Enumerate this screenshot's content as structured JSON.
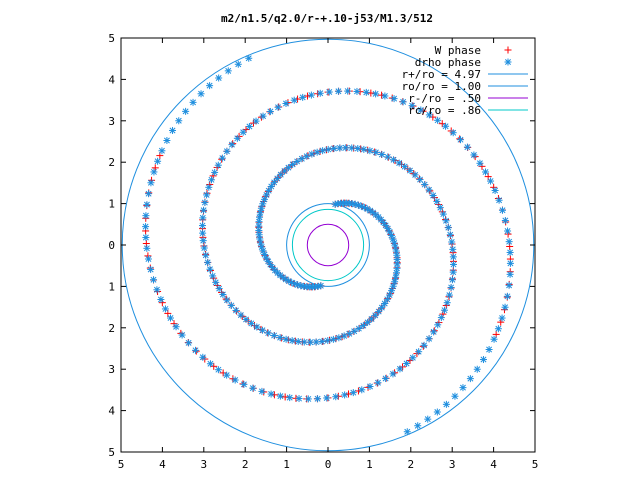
{
  "chart_data": {
    "type": "scatter",
    "title": "m2/n1.5/q2.0/r-+.10-j53/M1.3/512",
    "xlim": [
      -5,
      5
    ],
    "ylim": [
      -5,
      5
    ],
    "x_ticks": [
      -5,
      -4,
      -3,
      -2,
      -1,
      0,
      1,
      2,
      3,
      4,
      5
    ],
    "y_ticks": [
      -5,
      -4,
      -3,
      -2,
      -1,
      0,
      1,
      2,
      3,
      4,
      5
    ],
    "x_tick_labels": [
      "5",
      "4",
      "3",
      "2",
      "1",
      "0",
      "1",
      "2",
      "3",
      "4",
      "5"
    ],
    "y_tick_labels": [
      "5",
      "4",
      "3",
      "2",
      "1",
      "0",
      "1",
      "2",
      "3",
      "4",
      "5"
    ],
    "grid": false,
    "legend_position": "top-right",
    "legend": [
      {
        "label": "W phase",
        "kind": "point",
        "marker": "plus",
        "color": "#ff0000"
      },
      {
        "label": "drho phase",
        "kind": "point",
        "marker": "star",
        "color": "#1f8fdf"
      },
      {
        "label": "r+/ro = 4.97",
        "kind": "line",
        "color": "#1f8fdf"
      },
      {
        "label": "ro/ro = 1.00",
        "kind": "line",
        "color": "#1f8fdf"
      },
      {
        "label": "r-/ro =  .50",
        "kind": "line",
        "color": "#9400d3"
      },
      {
        "label": "rc/ro =  .86",
        "kind": "line",
        "color": "#00c8c8"
      }
    ],
    "circles": [
      {
        "name": "r+/ro",
        "radius": 4.97,
        "color": "#1f8fdf"
      },
      {
        "name": "ro/ro",
        "radius": 1.0,
        "color": "#1f8fdf"
      },
      {
        "name": "r-/ro",
        "radius": 0.5,
        "color": "#9400d3"
      },
      {
        "name": "rc/ro",
        "radius": 0.86,
        "color": "#00c8c8"
      }
    ],
    "series": [
      {
        "name": "W phase",
        "marker": "plus",
        "color": "#ff0000",
        "spirals": [
          {
            "arm": "A",
            "r_start": 1.0,
            "r_end": 4.6,
            "theta0_deg": 80,
            "winding_deg_per_r": -130,
            "count": 120
          },
          {
            "arm": "B",
            "r_start": 1.0,
            "r_end": 4.6,
            "theta0_deg": 260,
            "winding_deg_per_r": -130,
            "count": 120
          }
        ]
      },
      {
        "name": "drho phase",
        "marker": "star",
        "color": "#1f8fdf",
        "spirals": [
          {
            "arm": "A",
            "r_start": 1.0,
            "r_end": 4.9,
            "theta0_deg": 80,
            "winding_deg_per_r": -130,
            "count": 150
          },
          {
            "arm": "B",
            "r_start": 1.0,
            "r_end": 4.9,
            "theta0_deg": 260,
            "winding_deg_per_r": -130,
            "count": 150
          }
        ]
      }
    ]
  }
}
